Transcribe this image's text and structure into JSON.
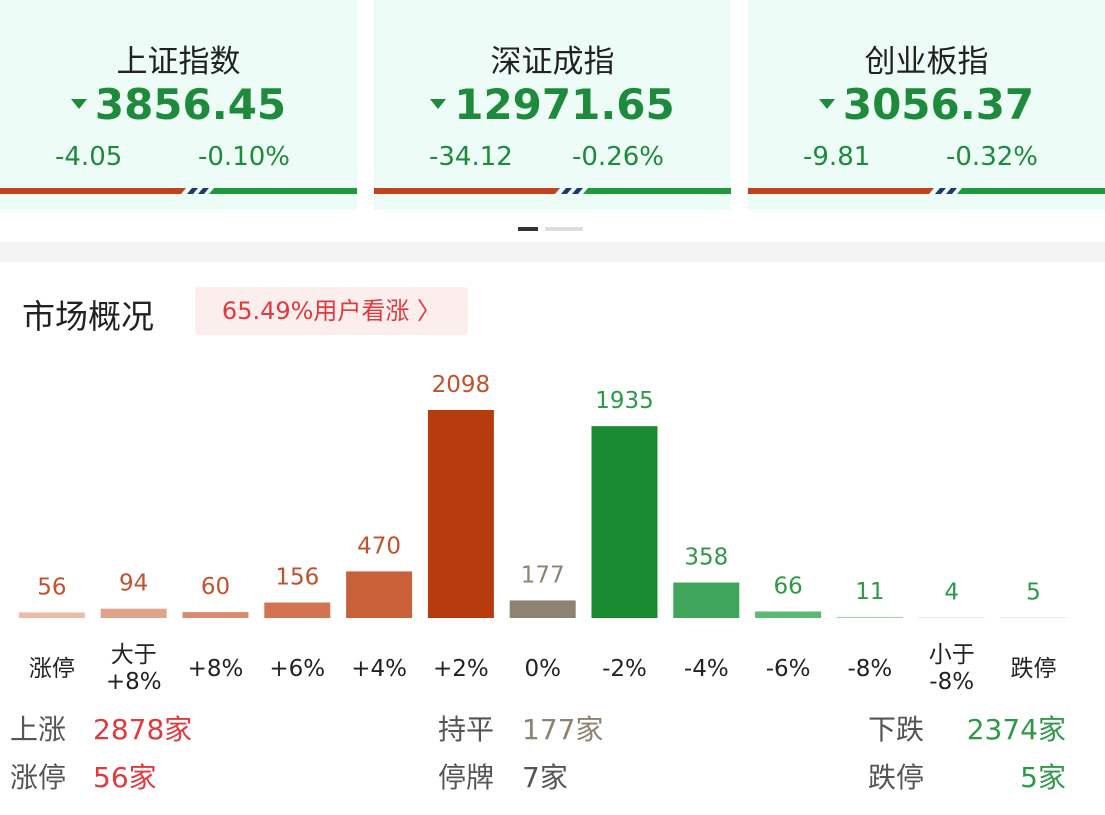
{
  "indices": [
    {
      "name": "上证指数",
      "value": "3856.45",
      "change": "-4.05",
      "percent": "-0.10%"
    },
    {
      "name": "深证成指",
      "value": "12971.65",
      "change": "-34.12",
      "percent": "-0.26%"
    },
    {
      "name": "创业板指",
      "value": "3056.37",
      "change": "-9.81",
      "percent": "-0.32%"
    }
  ],
  "market": {
    "title": "市场概况",
    "sentiment": "65.49%用户看涨 〉"
  },
  "chart_data": {
    "type": "bar",
    "categories": [
      "涨停",
      "大于\n+8%",
      "+8%",
      "+6%",
      "+4%",
      "+2%",
      "0%",
      "-2%",
      "-4%",
      "-6%",
      "-8%",
      "小于\n-8%",
      "跌停"
    ],
    "values": [
      56,
      94,
      60,
      156,
      470,
      2098,
      177,
      1935,
      358,
      66,
      11,
      4,
      5
    ],
    "colors": [
      "#ebbcac",
      "#e0a48c",
      "#da8c70",
      "#d27352",
      "#c8613a",
      "#b83b0d",
      "#8d8372",
      "#1a8b31",
      "#3fa65b",
      "#5db971",
      "#9bd1a9",
      "#c2e2ca",
      "#d9eddf"
    ],
    "label_colors": [
      "#c0532d",
      "#c0532d",
      "#c0532d",
      "#c0532d",
      "#c0532d",
      "#c0532d",
      "#8d8372",
      "#2e9a48",
      "#2e9a48",
      "#2e9a48",
      "#2e9a48",
      "#2e9a48",
      "#2e9a48"
    ]
  },
  "summary": {
    "rise": {
      "label": "上涨",
      "value": "2878家"
    },
    "limit_up": {
      "label": "涨停",
      "value": "56家"
    },
    "flat": {
      "label": "持平",
      "value": "177家"
    },
    "suspended": {
      "label": "停牌",
      "value": "7家"
    },
    "fall": {
      "label": "下跌",
      "value": "2374家"
    },
    "limit_down": {
      "label": "跌停",
      "value": "5家"
    }
  }
}
